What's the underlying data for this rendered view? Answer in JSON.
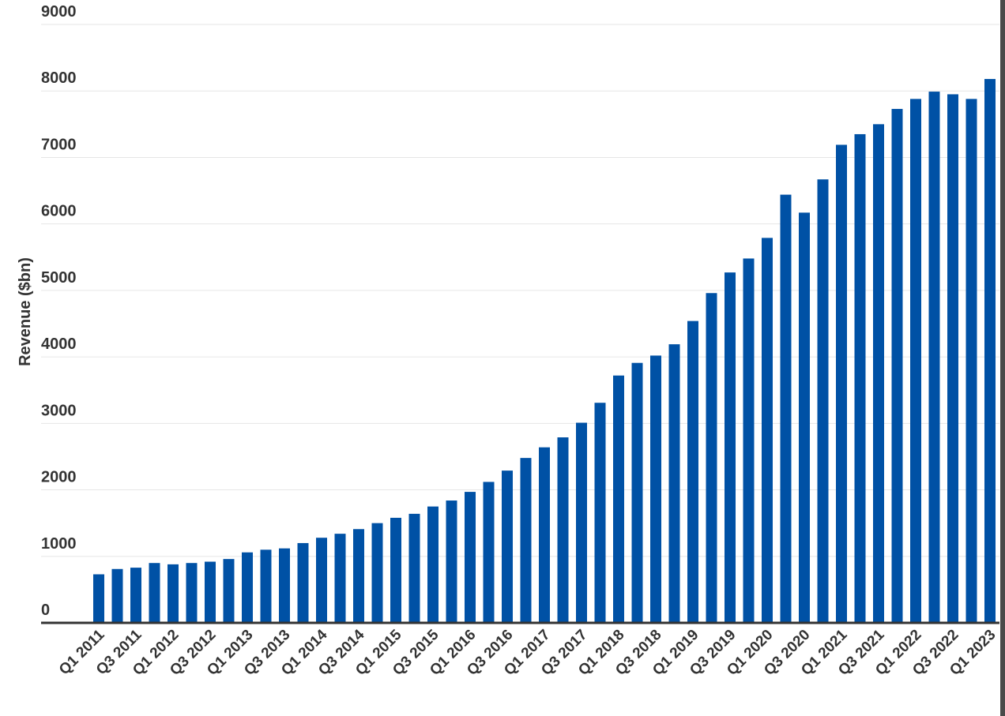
{
  "chart_data": {
    "type": "bar",
    "title": "",
    "xlabel": "",
    "ylabel": "Revenue ($bn)",
    "ylim": [
      0,
      9000
    ],
    "yticks": [
      0,
      1000,
      2000,
      3000,
      4000,
      5000,
      6000,
      7000,
      8000,
      9000
    ],
    "grid": true,
    "legend": "none",
    "bar_color": "#0051a5",
    "categories": [
      "Q1 2011",
      "Q2 2011",
      "Q3 2011",
      "Q4 2011",
      "Q1 2012",
      "Q2 2012",
      "Q3 2012",
      "Q4 2012",
      "Q1 2013",
      "Q2 2013",
      "Q3 2013",
      "Q4 2013",
      "Q1 2014",
      "Q2 2014",
      "Q3 2014",
      "Q4 2014",
      "Q1 2015",
      "Q2 2015",
      "Q3 2015",
      "Q4 2015",
      "Q1 2016",
      "Q2 2016",
      "Q3 2016",
      "Q4 2016",
      "Q1 2017",
      "Q2 2017",
      "Q3 2017",
      "Q4 2017",
      "Q1 2018",
      "Q2 2018",
      "Q3 2018",
      "Q4 2018",
      "Q1 2019",
      "Q2 2019",
      "Q3 2019",
      "Q4 2019",
      "Q1 2020",
      "Q2 2020",
      "Q3 2020",
      "Q4 2020",
      "Q1 2021",
      "Q2 2021",
      "Q3 2021",
      "Q4 2021",
      "Q1 2022",
      "Q2 2022",
      "Q3 2022",
      "Q4 2022",
      "Q1 2023"
    ],
    "tick_labels_shown": [
      "Q1 2011",
      "Q3 2011",
      "Q1 2012",
      "Q3 2012",
      "Q1 2013",
      "Q3 2013",
      "Q1 2014",
      "Q3 2014",
      "Q1 2015",
      "Q3 2015",
      "Q1 2016",
      "Q3 2016",
      "Q1 2017",
      "Q3 2017",
      "Q1 2018",
      "Q3 2018",
      "Q1 2019",
      "Q3 2019",
      "Q1 2020",
      "Q3 2020",
      "Q1 2021",
      "Q3 2021",
      "Q1 2022",
      "Q3 2022",
      "Q1 2023"
    ],
    "values": [
      730,
      810,
      830,
      900,
      880,
      900,
      920,
      960,
      1060,
      1100,
      1120,
      1200,
      1280,
      1340,
      1410,
      1500,
      1580,
      1640,
      1750,
      1840,
      1970,
      2120,
      2290,
      2480,
      2640,
      2790,
      3010,
      3310,
      3720,
      3910,
      4020,
      4190,
      4540,
      4960,
      5270,
      5480,
      5790,
      6440,
      6170,
      6670,
      7190,
      7350,
      7500,
      7730,
      7880,
      7990,
      7950,
      7880,
      8180
    ]
  }
}
